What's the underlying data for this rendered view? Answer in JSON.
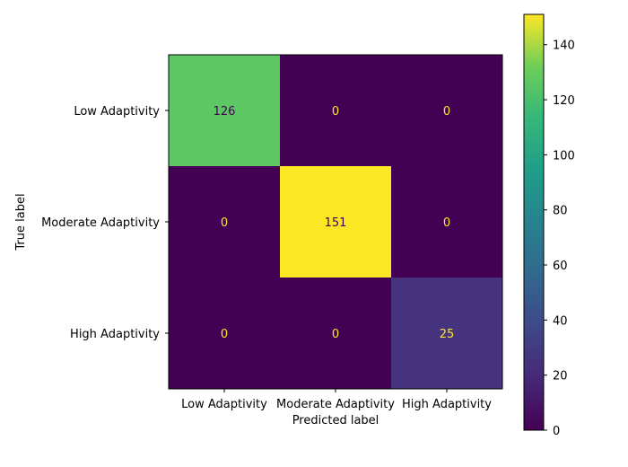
{
  "chart_data": {
    "type": "heatmap",
    "title": "",
    "xlabel": "Predicted label",
    "ylabel": "True label",
    "x_categories": [
      "Low Adaptivity",
      "Moderate Adaptivity",
      "High Adaptivity"
    ],
    "y_categories": [
      "Low Adaptivity",
      "Moderate Adaptivity",
      "High Adaptivity"
    ],
    "values": [
      [
        126,
        0,
        0
      ],
      [
        0,
        151,
        0
      ],
      [
        0,
        0,
        25
      ]
    ],
    "colormap": "viridis",
    "colorbar": {
      "range": [
        0,
        151
      ],
      "ticks": [
        0,
        20,
        40,
        60,
        80,
        100,
        120,
        140
      ]
    },
    "colors": {
      "text_on_dark": "#fde725",
      "text_on_light": "#440154"
    }
  }
}
